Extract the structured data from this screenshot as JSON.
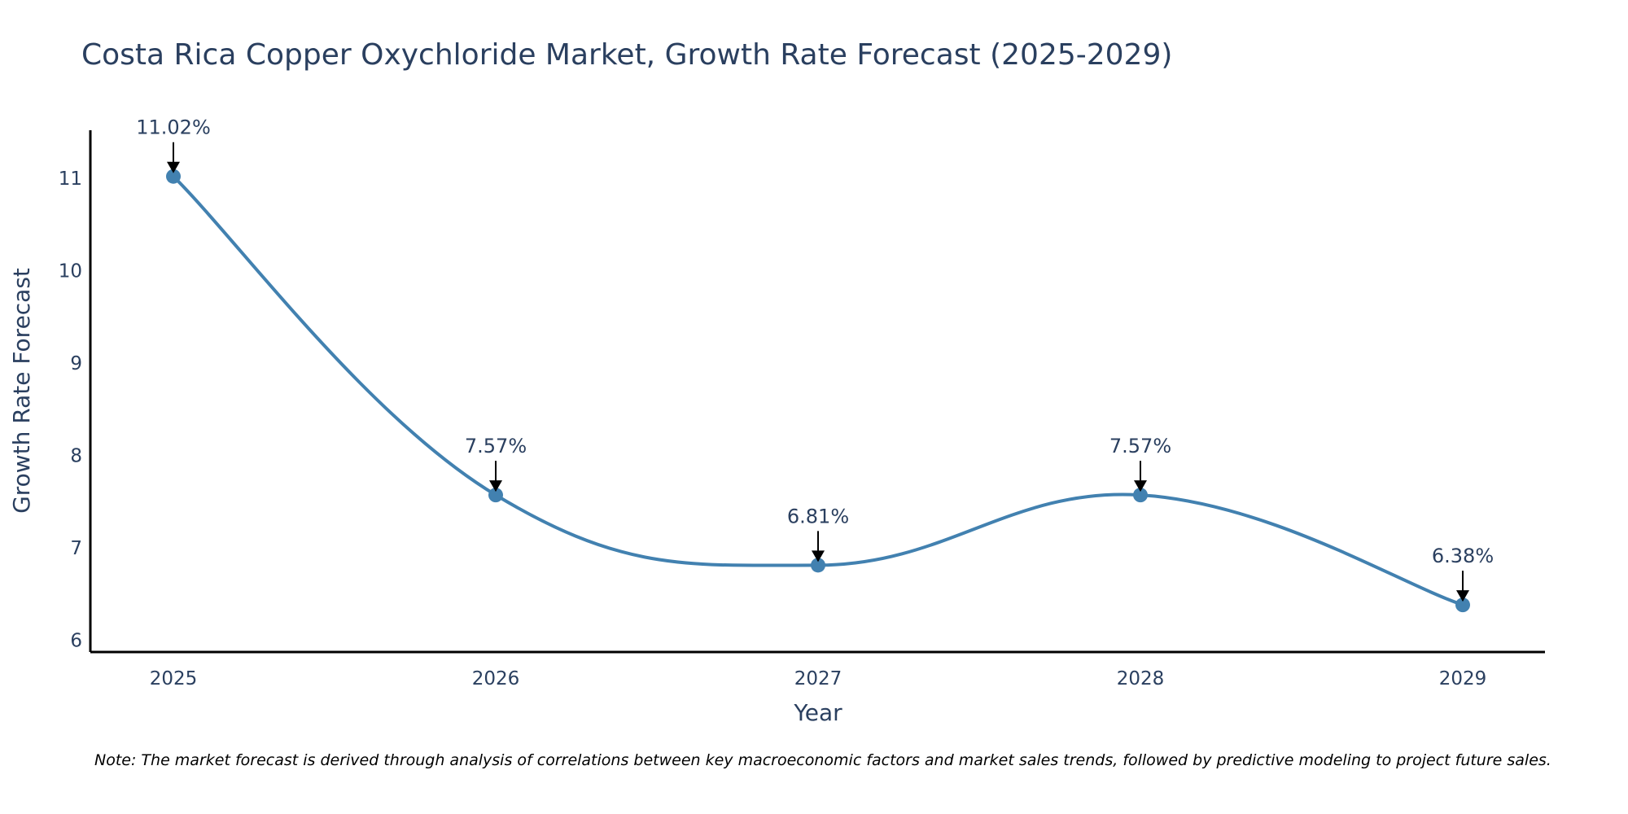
{
  "chart_data": {
    "type": "line",
    "title": "Costa Rica Copper Oxychloride Market, Growth Rate Forecast (2025-2029)",
    "xlabel": "Year",
    "ylabel": "Growth Rate Forecast",
    "categories": [
      "2025",
      "2026",
      "2027",
      "2028",
      "2029"
    ],
    "values": [
      11.02,
      7.57,
      6.81,
      7.57,
      6.38
    ],
    "data_labels": [
      "11.02%",
      "7.57%",
      "6.81%",
      "7.57%",
      "6.38%"
    ],
    "y_ticks": [
      6,
      7,
      8,
      9,
      10,
      11
    ],
    "ylim": [
      5.87,
      11.52
    ],
    "grid": false,
    "line_color": "#4281b0",
    "marker_color": "#4281b0",
    "arrow_color": "#000000",
    "note": "Note: The market forecast is derived through analysis of correlations between key macroeconomic factors and market sales trends, followed by predictive modeling to project future sales."
  }
}
